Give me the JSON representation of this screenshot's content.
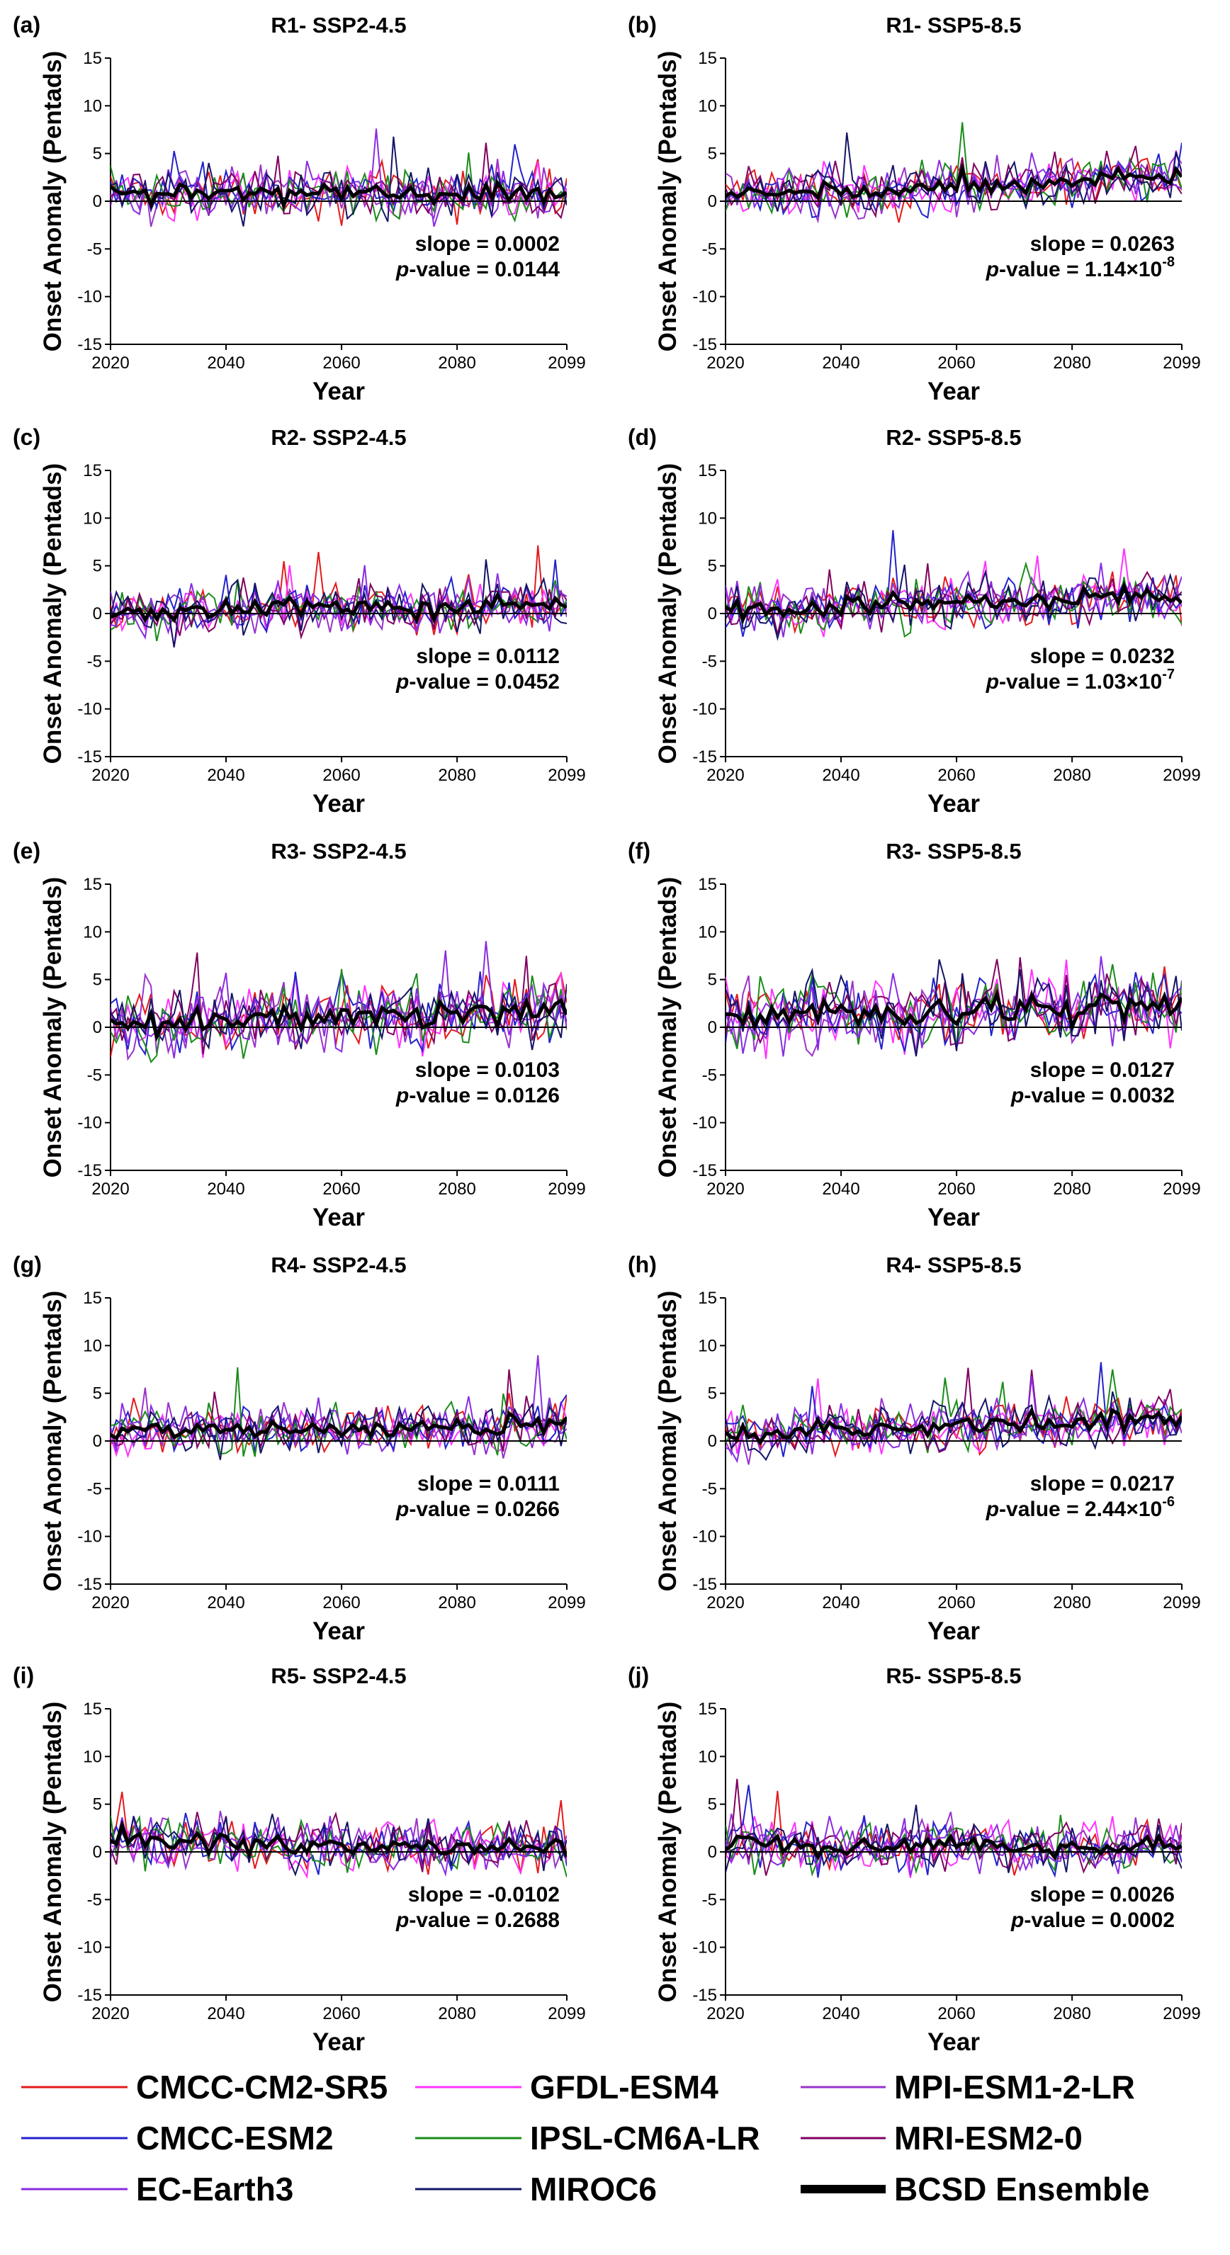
{
  "figure": {
    "xlabel": "Year",
    "ylabel": "Onset Anomaly (Pentads)",
    "x_ticks": [
      "2020",
      "2040",
      "2060",
      "2080",
      "2099"
    ],
    "y_ticks": [
      "15",
      "10",
      "5",
      "0",
      "-5",
      "-10",
      "-15"
    ]
  },
  "legend": {
    "items": [
      {
        "name": "CMCC-CM2-SR5",
        "color": "#e41a1c"
      },
      {
        "name": "GFDL-ESM4",
        "color": "#ff33ff"
      },
      {
        "name": "MPI-ESM1-2-LR",
        "color": "#9933cc"
      },
      {
        "name": "CMCC-ESM2",
        "color": "#2222cc"
      },
      {
        "name": "IPSL-CM6A-LR",
        "color": "#1a8c1a"
      },
      {
        "name": "MRI-ESM2-0",
        "color": "#800060"
      },
      {
        "name": "EC-Earth3",
        "color": "#8a2be2"
      },
      {
        "name": "MIROC6",
        "color": "#141466"
      },
      {
        "name": "BCSD Ensemble",
        "color": "#000000"
      }
    ]
  },
  "chart_data": [
    {
      "type": "line",
      "panel": "(a)",
      "title": "R1- SSP2-4.5",
      "xlim": [
        2020,
        2099
      ],
      "ylim": [
        -15,
        15
      ],
      "slope_text": "slope = 0.0002",
      "p_label": "p",
      "p_text": "-value = 0.0144",
      "p_exp": "",
      "ensemble_mean": 0.8,
      "ensemble_trend": 0.0002
    },
    {
      "type": "line",
      "panel": "(b)",
      "title": "R1- SSP5-8.5",
      "xlim": [
        2020,
        2099
      ],
      "ylim": [
        -15,
        15
      ],
      "slope_text": "slope = 0.0263",
      "p_label": "p",
      "p_text": "-value = 1.14×10",
      "p_exp": "-8",
      "ensemble_mean": 1.5,
      "ensemble_trend": 0.0263
    },
    {
      "type": "line",
      "panel": "(c)",
      "title": "R2- SSP2-4.5",
      "xlim": [
        2020,
        2099
      ],
      "ylim": [
        -15,
        15
      ],
      "slope_text": "slope = 0.0112",
      "p_label": "p",
      "p_text": "-value = 0.0452",
      "p_exp": "",
      "ensemble_mean": 0.5,
      "ensemble_trend": 0.0112
    },
    {
      "type": "line",
      "panel": "(d)",
      "title": "R2- SSP5-8.5",
      "xlim": [
        2020,
        2099
      ],
      "ylim": [
        -15,
        15
      ],
      "slope_text": "slope = 0.0232",
      "p_label": "p",
      "p_text": "-value = 1.03×10",
      "p_exp": "-7",
      "ensemble_mean": 1.0,
      "ensemble_trend": 0.0232
    },
    {
      "type": "line",
      "panel": "(e)",
      "title": "R3- SSP2-4.5",
      "xlim": [
        2020,
        2099
      ],
      "ylim": [
        -15,
        15
      ],
      "slope_text": "slope = 0.0103",
      "p_label": "p",
      "p_text": "-value = 0.0126",
      "p_exp": "",
      "ensemble_mean": 1.2,
      "ensemble_trend": 0.0103
    },
    {
      "type": "line",
      "panel": "(f)",
      "title": "R3- SSP5-8.5",
      "xlim": [
        2020,
        2099
      ],
      "ylim": [
        -15,
        15
      ],
      "slope_text": "slope = 0.0127",
      "p_label": "p",
      "p_text": "-value = 0.0032",
      "p_exp": "",
      "ensemble_mean": 1.6,
      "ensemble_trend": 0.0127
    },
    {
      "type": "line",
      "panel": "(g)",
      "title": "R4- SSP2-4.5",
      "xlim": [
        2020,
        2099
      ],
      "ylim": [
        -15,
        15
      ],
      "slope_text": "slope = 0.0111",
      "p_label": "p",
      "p_text": "-value = 0.0266",
      "p_exp": "",
      "ensemble_mean": 1.2,
      "ensemble_trend": 0.0111
    },
    {
      "type": "line",
      "panel": "(h)",
      "title": "R4- SSP5-8.5",
      "xlim": [
        2020,
        2099
      ],
      "ylim": [
        -15,
        15
      ],
      "slope_text": "slope = 0.0217",
      "p_label": "p",
      "p_text": "-value = 2.44×10",
      "p_exp": "-6",
      "ensemble_mean": 1.5,
      "ensemble_trend": 0.0217
    },
    {
      "type": "line",
      "panel": "(i)",
      "title": "R5- SSP2-4.5",
      "xlim": [
        2020,
        2099
      ],
      "ylim": [
        -15,
        15
      ],
      "slope_text": "slope = -0.0102",
      "p_label": "p",
      "p_text": "-value = 0.2688",
      "p_exp": "",
      "ensemble_mean": 0.7,
      "ensemble_trend": -0.0102
    },
    {
      "type": "line",
      "panel": "(j)",
      "title": "R5- SSP5-8.5",
      "xlim": [
        2020,
        2099
      ],
      "ylim": [
        -15,
        15
      ],
      "slope_text": "slope = 0.0026",
      "p_label": "p",
      "p_text": "-value = 0.0002",
      "p_exp": "",
      "ensemble_mean": 0.6,
      "ensemble_trend": 0.0026
    }
  ]
}
